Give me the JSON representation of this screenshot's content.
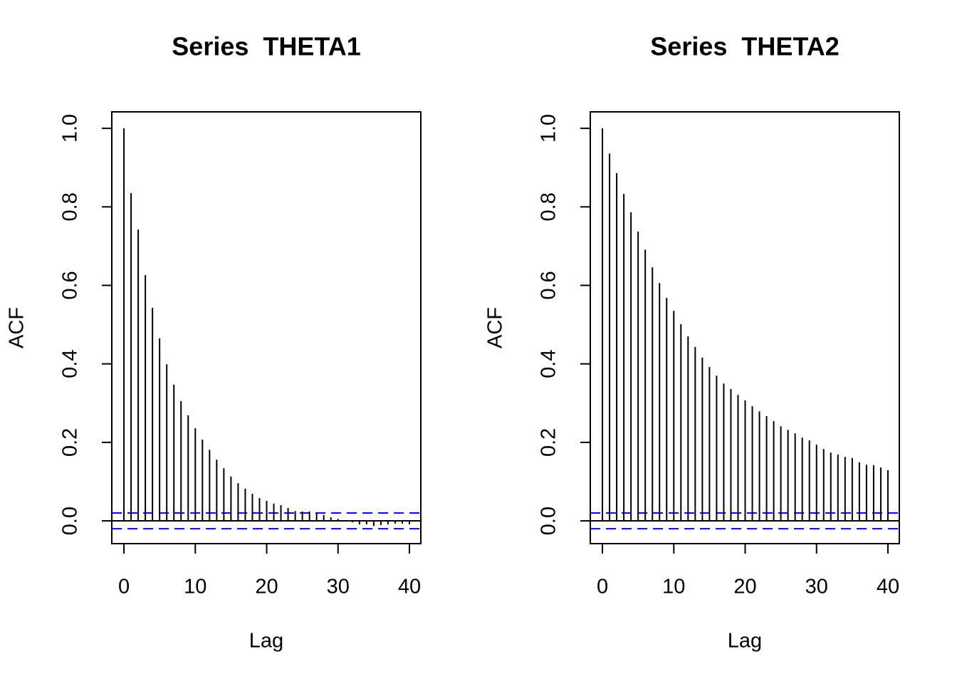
{
  "chart_data": [
    {
      "type": "stem",
      "title": "Series  THETA1",
      "xlabel": "Lag",
      "ylabel": "ACF",
      "x": [
        0,
        1,
        2,
        3,
        4,
        5,
        6,
        7,
        8,
        9,
        10,
        11,
        12,
        13,
        14,
        15,
        16,
        17,
        18,
        19,
        20,
        21,
        22,
        23,
        24,
        25,
        26,
        27,
        28,
        29,
        30,
        31,
        32,
        33,
        34,
        35,
        36,
        37,
        38,
        39,
        40
      ],
      "values": [
        1.0,
        0.835,
        0.742,
        0.626,
        0.543,
        0.465,
        0.399,
        0.347,
        0.305,
        0.269,
        0.236,
        0.207,
        0.181,
        0.156,
        0.134,
        0.113,
        0.096,
        0.082,
        0.069,
        0.058,
        0.051,
        0.044,
        0.04,
        0.033,
        0.025,
        0.024,
        0.024,
        0.02,
        0.015,
        0.009,
        0.005,
        0.002,
        -0.004,
        -0.009,
        -0.009,
        -0.013,
        -0.011,
        -0.009,
        -0.007,
        -0.007,
        -0.009
      ],
      "color": "#000000",
      "conf_limits": [
        -0.02,
        0.02
      ],
      "conf_color": "#0000ff",
      "xlim": [
        -1.7,
        41.6
      ],
      "ylim": [
        -0.058,
        1.042
      ],
      "xticks": [
        0,
        10,
        20,
        30,
        40
      ],
      "yticks": [
        {
          "value": 0,
          "label": "0.0"
        },
        0.2,
        0.4,
        0.6,
        0.8,
        {
          "value": 1,
          "label": "1.0"
        }
      ]
    },
    {
      "type": "stem",
      "title": "Series  THETA2",
      "xlabel": "Lag",
      "ylabel": "ACF",
      "x": [
        0,
        1,
        2,
        3,
        4,
        5,
        6,
        7,
        8,
        9,
        10,
        11,
        12,
        13,
        14,
        15,
        16,
        17,
        18,
        19,
        20,
        21,
        22,
        23,
        24,
        25,
        26,
        27,
        28,
        29,
        30,
        31,
        32,
        33,
        34,
        35,
        36,
        37,
        38,
        39,
        40
      ],
      "values": [
        1.0,
        0.936,
        0.886,
        0.833,
        0.786,
        0.737,
        0.691,
        0.646,
        0.606,
        0.568,
        0.535,
        0.501,
        0.47,
        0.443,
        0.416,
        0.392,
        0.37,
        0.35,
        0.336,
        0.321,
        0.307,
        0.292,
        0.279,
        0.267,
        0.254,
        0.241,
        0.232,
        0.223,
        0.212,
        0.205,
        0.194,
        0.183,
        0.174,
        0.169,
        0.163,
        0.16,
        0.149,
        0.143,
        0.142,
        0.136,
        0.129
      ],
      "color": "#000000",
      "conf_limits": [
        -0.02,
        0.02
      ],
      "conf_color": "#0000ff",
      "xlim": [
        -1.7,
        41.6
      ],
      "ylim": [
        -0.058,
        1.042
      ],
      "xticks": [
        0,
        10,
        20,
        30,
        40
      ],
      "yticks": [
        {
          "value": 0,
          "label": "0.0"
        },
        0.2,
        0.4,
        0.6,
        0.8,
        {
          "value": 1,
          "label": "1.0"
        }
      ]
    }
  ]
}
